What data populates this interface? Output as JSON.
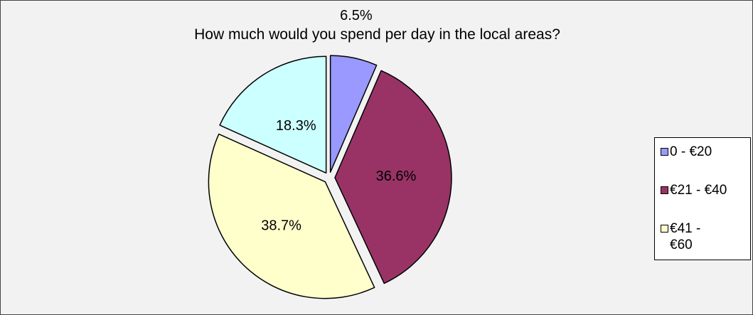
{
  "chart_data": {
    "type": "pie",
    "title": "How much would you spend per day in the local areas?",
    "slices": [
      {
        "name": "0 - €20",
        "value": 6.5,
        "label": "6.5%",
        "color": "#9999ff"
      },
      {
        "name": "€21 - €40",
        "value": 36.6,
        "label": "36.6%",
        "color": "#993366"
      },
      {
        "name": "€41 - €60",
        "value": 38.7,
        "label": "38.7%",
        "color": "#ffffcc"
      },
      {
        "name": "",
        "value": 18.3,
        "label": "18.3%",
        "color": "#ccffff"
      }
    ],
    "legend": {
      "placement": "right",
      "entries": [
        "0 - €20",
        "€21 - €40",
        "€41 - €60"
      ]
    },
    "exploded": true,
    "colors": {
      "background": "#f2f2f2",
      "slice_border": "#000000"
    }
  }
}
